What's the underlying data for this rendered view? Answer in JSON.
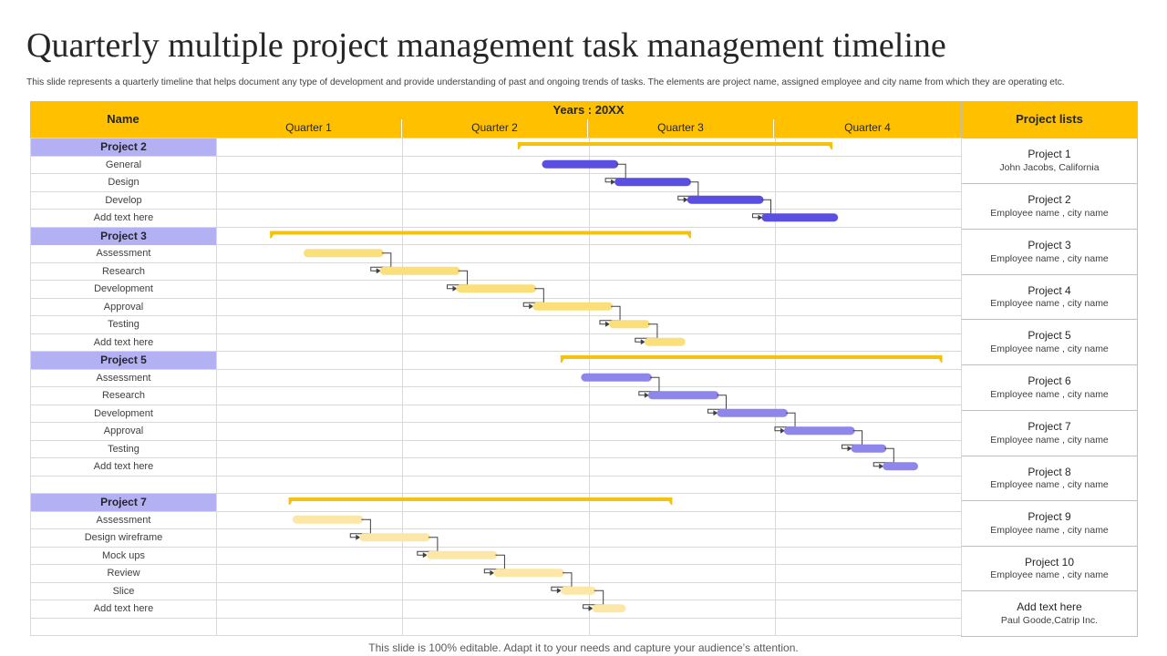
{
  "title": "Quarterly multiple project management task management timeline",
  "subtitle": "This slide represents a quarterly timeline that helps document any type of development and provide understanding of past and ongoing trends of tasks. The elements are project name, assigned employee and city name from which they are operating etc.",
  "footer": "This slide is 100% editable. Adapt it to your needs and capture your audience’s attention.",
  "colors": {
    "header_yellow": "#ffc000",
    "project_label": "#b4b0f4",
    "summary_bar": "#f4c20d",
    "purple_dark": "#5a4fe0",
    "purple_light": "#8f86ec",
    "yellow_light": "#fbdf7a",
    "yellow_pale": "#fde7a6",
    "grid": "#d9d9d9"
  },
  "table": {
    "name_header": "Name",
    "years_header": "Years : 20XX",
    "quarters": [
      "Quarter 1",
      "Quarter 2",
      "Quarter 3",
      "Quarter 4"
    ],
    "project_lists_header": "Project lists"
  },
  "project_list": [
    {
      "name": "Project 1",
      "detail": "John Jacobs, California"
    },
    {
      "name": "Project 2",
      "detail": "Employee  name , city name"
    },
    {
      "name": "Project 3",
      "detail": "Employee  name , city name"
    },
    {
      "name": "Project 4",
      "detail": "Employee  name , city name"
    },
    {
      "name": "Project 5",
      "detail": "Employee  name , city name"
    },
    {
      "name": "Project 6",
      "detail": "Employee  name , city name"
    },
    {
      "name": "Project 7",
      "detail": "Employee  name , city name"
    },
    {
      "name": "Project 8",
      "detail": "Employee  name , city name"
    },
    {
      "name": "Project 9",
      "detail": "Employee  name , city name"
    },
    {
      "name": "Project 10",
      "detail": "Employee  name , city name"
    },
    {
      "name": "Add text here",
      "detail": "Paul Goode,Catrip Inc."
    }
  ],
  "rows": [
    {
      "label": "Project 2",
      "type": "project"
    },
    {
      "label": "General",
      "type": "task"
    },
    {
      "label": "Design",
      "type": "task"
    },
    {
      "label": "Develop",
      "type": "task"
    },
    {
      "label": "Add text here",
      "type": "task"
    },
    {
      "label": "Project 3",
      "type": "project"
    },
    {
      "label": "Assessment",
      "type": "task"
    },
    {
      "label": "Research",
      "type": "task"
    },
    {
      "label": "Development",
      "type": "task"
    },
    {
      "label": "Approval",
      "type": "task"
    },
    {
      "label": "Testing",
      "type": "task"
    },
    {
      "label": "Add text here",
      "type": "task"
    },
    {
      "label": "Project 5",
      "type": "project"
    },
    {
      "label": "Assessment",
      "type": "task"
    },
    {
      "label": "Research",
      "type": "task"
    },
    {
      "label": "Development",
      "type": "task"
    },
    {
      "label": "Approval",
      "type": "task"
    },
    {
      "label": "Testing",
      "type": "task"
    },
    {
      "label": "Add text here",
      "type": "task"
    },
    {
      "label": "",
      "type": "blank"
    },
    {
      "label": "Project 7",
      "type": "project"
    },
    {
      "label": "Assessment",
      "type": "task"
    },
    {
      "label": "Design wireframe",
      "type": "task"
    },
    {
      "label": "Mock ups",
      "type": "task"
    },
    {
      "label": "Review",
      "type": "task"
    },
    {
      "label": "Slice",
      "type": "task"
    },
    {
      "label": "Add text here",
      "type": "task"
    },
    {
      "label": "",
      "type": "blank"
    }
  ],
  "chart_data": {
    "type": "gantt",
    "x_axis": "quarters",
    "xlim": [
      0,
      4
    ],
    "projects": [
      {
        "name": "Project 2",
        "span": [
          1.62,
          3.31
        ],
        "color": "purple_dark",
        "tasks": [
          {
            "name": "General",
            "start": 1.75,
            "end": 2.16
          },
          {
            "name": "Design",
            "start": 2.14,
            "end": 2.55
          },
          {
            "name": "Develop",
            "start": 2.53,
            "end": 2.94
          },
          {
            "name": "Add text here",
            "start": 2.93,
            "end": 3.34
          }
        ]
      },
      {
        "name": "Project 3",
        "span": [
          0.29,
          2.55
        ],
        "color": "yellow_light",
        "tasks": [
          {
            "name": "Assessment",
            "start": 0.47,
            "end": 0.9
          },
          {
            "name": "Research",
            "start": 0.88,
            "end": 1.31
          },
          {
            "name": "Development",
            "start": 1.29,
            "end": 1.72
          },
          {
            "name": "Approval",
            "start": 1.7,
            "end": 2.13
          },
          {
            "name": "Testing",
            "start": 2.11,
            "end": 2.33
          },
          {
            "name": "Add text here",
            "start": 2.3,
            "end": 2.52
          }
        ]
      },
      {
        "name": "Project 5",
        "span": [
          1.85,
          3.9
        ],
        "color": "purple_light",
        "tasks": [
          {
            "name": "Assessment",
            "start": 1.96,
            "end": 2.34
          },
          {
            "name": "Research",
            "start": 2.32,
            "end": 2.7
          },
          {
            "name": "Development",
            "start": 2.69,
            "end": 3.07
          },
          {
            "name": "Approval",
            "start": 3.05,
            "end": 3.43
          },
          {
            "name": "Testing",
            "start": 3.41,
            "end": 3.6
          },
          {
            "name": "Add text here",
            "start": 3.58,
            "end": 3.77
          }
        ]
      },
      {
        "name": "Project 7",
        "span": [
          0.39,
          2.45
        ],
        "color": "yellow_pale",
        "tasks": [
          {
            "name": "Assessment",
            "start": 0.41,
            "end": 0.79
          },
          {
            "name": "Design wireframe",
            "start": 0.77,
            "end": 1.15
          },
          {
            "name": "Mock ups",
            "start": 1.13,
            "end": 1.51
          },
          {
            "name": "Review",
            "start": 1.49,
            "end": 1.87
          },
          {
            "name": "Slice",
            "start": 1.85,
            "end": 2.04
          },
          {
            "name": "Add text here",
            "start": 2.02,
            "end": 2.2
          }
        ]
      }
    ]
  }
}
